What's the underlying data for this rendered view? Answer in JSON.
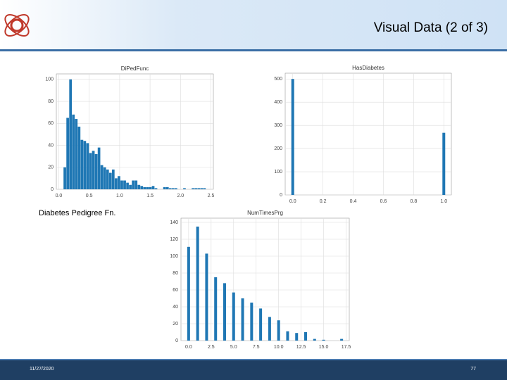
{
  "slide_title": "Visual Data (2 of 3)",
  "caption": "Diabetes Pedigree Fn.",
  "footer": {
    "date": "11/27/2020",
    "page": "77"
  },
  "chart_data": [
    {
      "type": "histogram",
      "title": "DiPedFunc",
      "color": "#1f77b4",
      "grid": true,
      "bins": [
        0.078,
        0.125,
        0.172,
        0.218,
        0.265,
        0.312,
        0.359,
        0.406,
        0.452,
        0.499,
        0.546,
        0.593,
        0.64,
        0.686,
        0.733,
        0.78,
        0.827,
        0.874,
        0.92,
        0.967,
        1.014,
        1.061,
        1.108,
        1.154,
        1.201,
        1.248,
        1.295,
        1.342,
        1.388,
        1.435,
        1.482,
        1.529,
        1.576,
        1.622,
        1.669,
        1.716,
        1.763,
        1.81,
        1.856,
        1.903,
        1.95,
        1.997,
        2.044,
        2.09,
        2.137,
        2.184,
        2.231,
        2.278,
        2.324,
        2.371,
        2.418
      ],
      "values": [
        20,
        65,
        100,
        68,
        64,
        57,
        45,
        44,
        42,
        33,
        35,
        32,
        38,
        22,
        20,
        18,
        15,
        18,
        10,
        12,
        8,
        8,
        6,
        4,
        8,
        8,
        4,
        3,
        2,
        2,
        2,
        3,
        1,
        0,
        0,
        2,
        2,
        1,
        1,
        1,
        0,
        0,
        1,
        0,
        0,
        1,
        1,
        1,
        1,
        1
      ],
      "xlim": [
        -0.04,
        2.54
      ],
      "xticks": [
        {
          "value": 0,
          "label": "0.0"
        },
        {
          "value": 0.5,
          "label": "0.5"
        },
        {
          "value": 1,
          "label": "1.0"
        },
        {
          "value": 1.5,
          "label": "1.5"
        },
        {
          "value": 2,
          "label": "2.0"
        },
        {
          "value": 2.5,
          "label": "2.5"
        }
      ],
      "ylim": [
        0,
        105
      ],
      "yticks": [
        0,
        20,
        40,
        60,
        80,
        100
      ]
    },
    {
      "type": "bar",
      "title": "HasDiabetes",
      "color": "#1f77b4",
      "grid": true,
      "x": [
        0,
        1
      ],
      "values": [
        500,
        268
      ],
      "xlim": [
        -0.05,
        1.05
      ],
      "xticks": [
        {
          "value": 0,
          "label": "0.0"
        },
        {
          "value": 0.2,
          "label": "0.2"
        },
        {
          "value": 0.4,
          "label": "0.4"
        },
        {
          "value": 0.6,
          "label": "0.6"
        },
        {
          "value": 0.8,
          "label": "0.8"
        },
        {
          "value": 1,
          "label": "1.0"
        }
      ],
      "ylim": [
        0,
        525
      ],
      "yticks": [
        0,
        100,
        200,
        300,
        400,
        500
      ]
    },
    {
      "type": "bar",
      "title": "NumTimesPrg",
      "color": "#1f77b4",
      "grid": true,
      "x": [
        0,
        1,
        2,
        3,
        4,
        5,
        6,
        7,
        8,
        9,
        10,
        11,
        12,
        13,
        14,
        15,
        17
      ],
      "values": [
        111,
        135,
        103,
        75,
        68,
        57,
        50,
        45,
        38,
        28,
        24,
        11,
        9,
        10,
        2,
        1,
        2
      ],
      "xlim": [
        -0.85,
        17.85
      ],
      "xticks": [
        {
          "value": 0,
          "label": "0.0"
        },
        {
          "value": 2.5,
          "label": "2.5"
        },
        {
          "value": 5,
          "label": "5.0"
        },
        {
          "value": 7.5,
          "label": "7.5"
        },
        {
          "value": 10,
          "label": "10.0"
        },
        {
          "value": 12.5,
          "label": "12.5"
        },
        {
          "value": 15,
          "label": "15.0"
        },
        {
          "value": 17.5,
          "label": "17.5"
        }
      ],
      "ylim": [
        0,
        145
      ],
      "yticks": [
        0,
        20,
        40,
        60,
        80,
        100,
        120,
        140
      ]
    }
  ]
}
